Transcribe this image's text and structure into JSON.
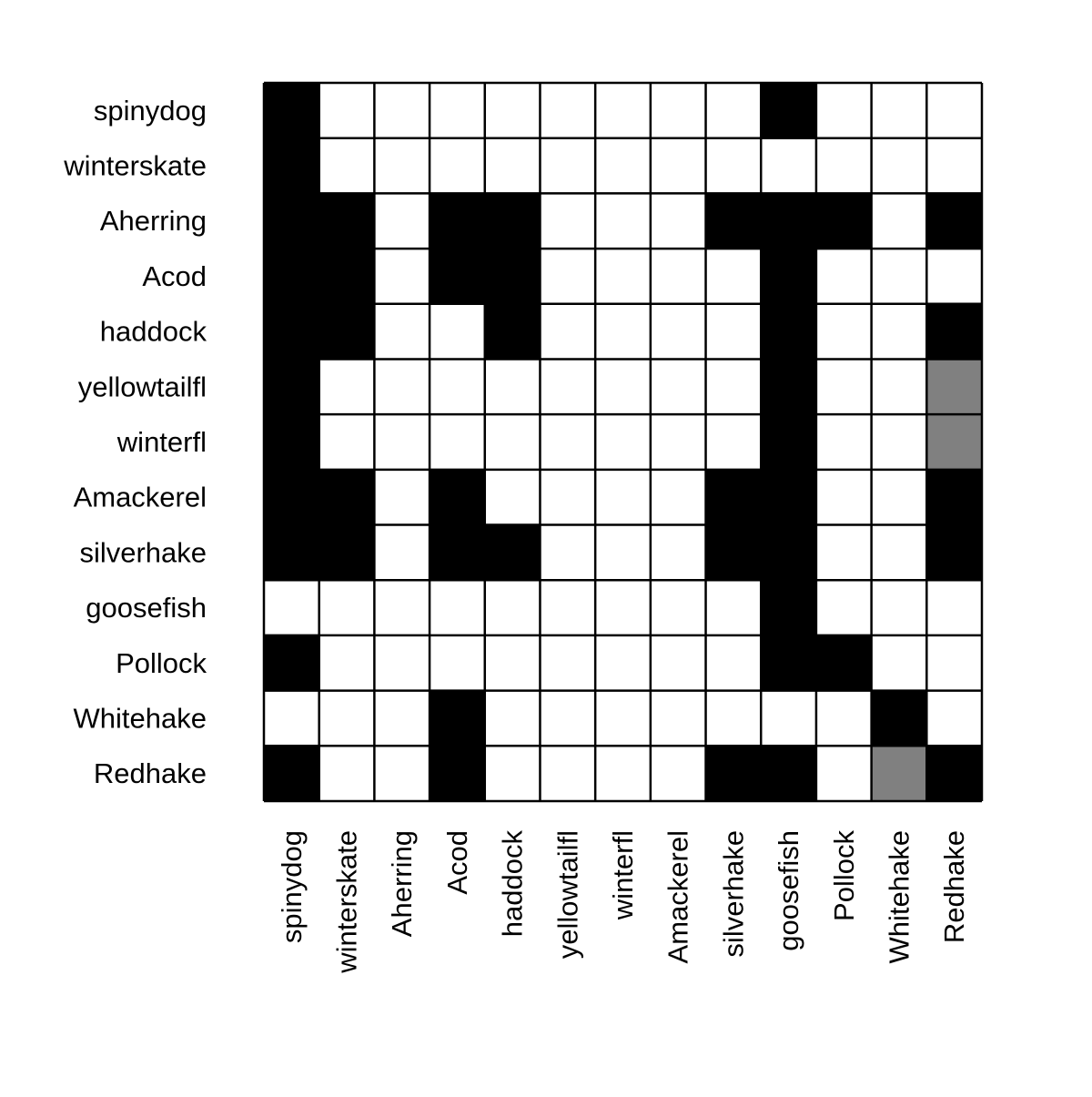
{
  "chart_data": {
    "type": "heatmap",
    "title": "",
    "xlabel": "",
    "ylabel": "",
    "rows": [
      "spinydog",
      "winterskate",
      "Aherring",
      "Acod",
      "haddock",
      "yellowtailfl",
      "winterfl",
      "Amackerel",
      "silverhake",
      "goosefish",
      "Pollock",
      "Whitehake",
      "Redhake"
    ],
    "cols": [
      "spinydog",
      "winterskate",
      "Aherring",
      "Acod",
      "haddock",
      "yellowtailfl",
      "winterfl",
      "Amackerel",
      "silverhake",
      "goosefish",
      "Pollock",
      "Whitehake",
      "Redhake"
    ],
    "values": [
      [
        1,
        0,
        0,
        0,
        0,
        0,
        0,
        0,
        0,
        1,
        0,
        0,
        0
      ],
      [
        1,
        0,
        0,
        0,
        0,
        0,
        0,
        0,
        0,
        0,
        0,
        0,
        0
      ],
      [
        1,
        1,
        0,
        1,
        1,
        0,
        0,
        0,
        1,
        1,
        1,
        0,
        1
      ],
      [
        1,
        1,
        0,
        1,
        1,
        0,
        0,
        0,
        0,
        1,
        0,
        0,
        0
      ],
      [
        1,
        1,
        0,
        0,
        1,
        0,
        0,
        0,
        0,
        1,
        0,
        0,
        1
      ],
      [
        1,
        0,
        0,
        0,
        0,
        0,
        0,
        0,
        0,
        1,
        0,
        0,
        0.5
      ],
      [
        1,
        0,
        0,
        0,
        0,
        0,
        0,
        0,
        0,
        1,
        0,
        0,
        0.5
      ],
      [
        1,
        1,
        0,
        1,
        0,
        0,
        0,
        0,
        1,
        1,
        0,
        0,
        1
      ],
      [
        1,
        1,
        0,
        1,
        1,
        0,
        0,
        0,
        1,
        1,
        0,
        0,
        1
      ],
      [
        0,
        0,
        0,
        0,
        0,
        0,
        0,
        0,
        0,
        1,
        0,
        0,
        0
      ],
      [
        1,
        0,
        0,
        0,
        0,
        0,
        0,
        0,
        0,
        1,
        1,
        0,
        0
      ],
      [
        0,
        0,
        0,
        1,
        0,
        0,
        0,
        0,
        0,
        0,
        0,
        1,
        0
      ],
      [
        1,
        0,
        0,
        1,
        0,
        0,
        0,
        0,
        1,
        1,
        0,
        0.5,
        1
      ]
    ],
    "colors": {
      "0": "#ffffff",
      "0.5": "#808080",
      "1": "#000000"
    },
    "grid": true,
    "legend": "none"
  }
}
